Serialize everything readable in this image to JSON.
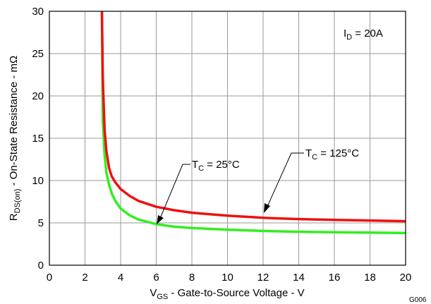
{
  "chart_data": {
    "type": "line",
    "xlabel": {
      "main": "V",
      "sub": "GS",
      "rest": " - Gate-to-Source Voltage - V"
    },
    "ylabel": {
      "main": "R",
      "sub": "DS(on)",
      "rest": " - On-State Resistance - mΩ"
    },
    "xlim": [
      0,
      20
    ],
    "ylim": [
      0,
      30
    ],
    "xticks": [
      0,
      2,
      4,
      6,
      8,
      10,
      12,
      14,
      16,
      18,
      20
    ],
    "yticks": [
      0,
      5,
      10,
      15,
      20,
      25,
      30
    ],
    "grid": true,
    "condition_label": {
      "main": "I",
      "sub": "D",
      "rest": " = 20A"
    },
    "figure_id": "G006",
    "series": [
      {
        "name": {
          "main": "T",
          "sub": "C",
          "rest": " = 25°C"
        },
        "color": "#33ee22",
        "x": [
          2.95,
          3.0,
          3.1,
          3.2,
          3.35,
          3.5,
          3.7,
          4.0,
          4.5,
          5.0,
          6.0,
          7.0,
          8.0,
          10.0,
          12.0,
          14.0,
          16.0,
          18.0,
          20.0
        ],
        "y": [
          30.0,
          17.0,
          13.0,
          11.0,
          9.5,
          8.5,
          7.6,
          6.7,
          5.9,
          5.4,
          4.85,
          4.55,
          4.4,
          4.2,
          4.05,
          3.95,
          3.9,
          3.85,
          3.8
        ]
      },
      {
        "name": {
          "main": "T",
          "sub": "C",
          "rest": " = 125°C"
        },
        "color": "#ee1111",
        "x": [
          2.95,
          3.0,
          3.1,
          3.2,
          3.35,
          3.5,
          3.7,
          4.0,
          4.5,
          5.0,
          6.0,
          7.0,
          8.0,
          10.0,
          12.0,
          14.0,
          16.0,
          18.0,
          20.0
        ],
        "y": [
          30.0,
          22.0,
          16.0,
          13.5,
          11.5,
          10.5,
          9.8,
          9.0,
          8.2,
          7.6,
          6.9,
          6.5,
          6.2,
          5.85,
          5.6,
          5.45,
          5.35,
          5.28,
          5.2
        ]
      }
    ]
  }
}
